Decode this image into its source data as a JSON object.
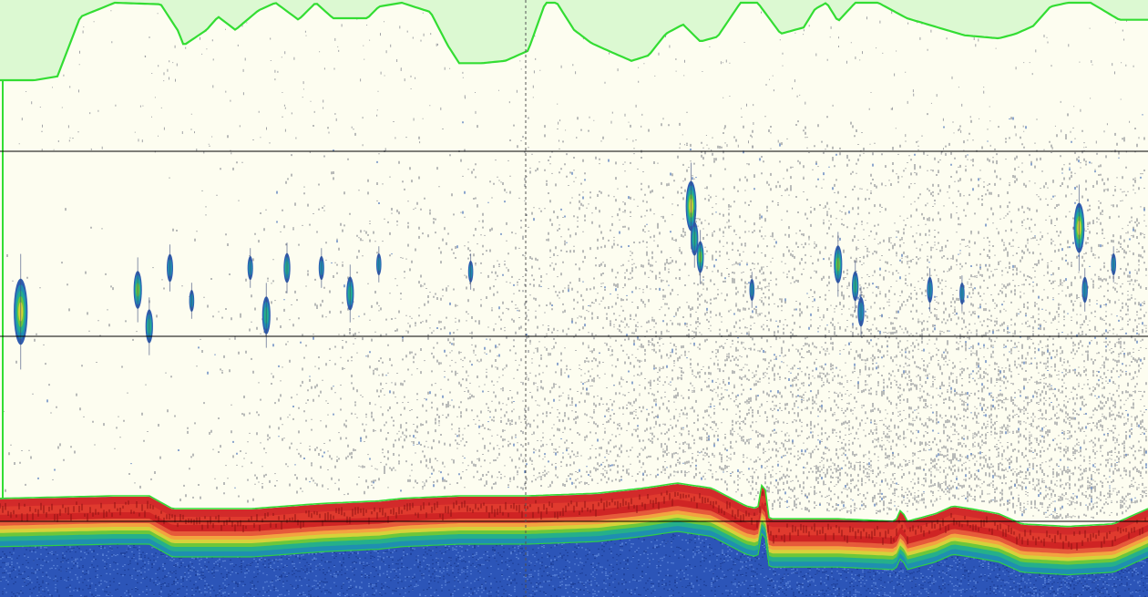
{
  "chart_data": {
    "type": "heatmap",
    "title": "",
    "xlabel": "",
    "ylabel": "",
    "axis_ticks_printed": false,
    "background_color": "#fdfdf0",
    "surface_band_fill": "#dcf9d2",
    "surface_band_line": "#33dd33",
    "bottom_line_color": "#33dd33",
    "depth_grid_color": "#000000",
    "time_marker_color": "#555555",
    "noise_color": "#555a6a",
    "weak_echo_color": "#2f5db0",
    "color_scale": [
      "#2f5db0",
      "#1f8fb0",
      "#25b08a",
      "#6cc73a",
      "#d6d23a",
      "#f3a340",
      "#e65a3a",
      "#d22a2a",
      "#8e1414"
    ],
    "depth_grid_lines": 3,
    "time_markers": 1,
    "surface_band_profile": [
      [
        0.0,
        1.0
      ],
      [
        0.03,
        1.0
      ],
      [
        0.05,
        0.95
      ],
      [
        0.07,
        0.18
      ],
      [
        0.1,
        0.0
      ],
      [
        0.14,
        0.02
      ],
      [
        0.155,
        0.36
      ],
      [
        0.16,
        0.55
      ],
      [
        0.18,
        0.35
      ],
      [
        0.19,
        0.18
      ],
      [
        0.205,
        0.35
      ],
      [
        0.225,
        0.1
      ],
      [
        0.24,
        0.0
      ],
      [
        0.26,
        0.22
      ],
      [
        0.275,
        0.0
      ],
      [
        0.29,
        0.2
      ],
      [
        0.32,
        0.2
      ],
      [
        0.33,
        0.05
      ],
      [
        0.35,
        0.0
      ],
      [
        0.375,
        0.12
      ],
      [
        0.39,
        0.55
      ],
      [
        0.4,
        0.78
      ],
      [
        0.42,
        0.78
      ],
      [
        0.44,
        0.75
      ],
      [
        0.46,
        0.62
      ],
      [
        0.475,
        0.0
      ],
      [
        0.485,
        0.0
      ],
      [
        0.5,
        0.35
      ],
      [
        0.515,
        0.52
      ],
      [
        0.53,
        0.62
      ],
      [
        0.55,
        0.75
      ],
      [
        0.565,
        0.68
      ],
      [
        0.58,
        0.4
      ],
      [
        0.595,
        0.28
      ],
      [
        0.61,
        0.5
      ],
      [
        0.625,
        0.44
      ],
      [
        0.645,
        0.0
      ],
      [
        0.66,
        0.0
      ],
      [
        0.68,
        0.4
      ],
      [
        0.7,
        0.32
      ],
      [
        0.71,
        0.08
      ],
      [
        0.72,
        0.0
      ],
      [
        0.73,
        0.24
      ],
      [
        0.745,
        0.0
      ],
      [
        0.765,
        0.0
      ],
      [
        0.79,
        0.2
      ],
      [
        0.84,
        0.42
      ],
      [
        0.87,
        0.46
      ],
      [
        0.885,
        0.4
      ],
      [
        0.9,
        0.3
      ],
      [
        0.915,
        0.05
      ],
      [
        0.93,
        0.0
      ],
      [
        0.95,
        0.0
      ],
      [
        0.975,
        0.22
      ],
      [
        1.0,
        0.22
      ]
    ],
    "bottom_profile": [
      [
        0.0,
        0.82
      ],
      [
        0.1,
        0.81
      ],
      [
        0.13,
        0.81
      ],
      [
        0.15,
        0.86
      ],
      [
        0.22,
        0.86
      ],
      [
        0.28,
        0.84
      ],
      [
        0.33,
        0.83
      ],
      [
        0.35,
        0.82
      ],
      [
        0.4,
        0.81
      ],
      [
        0.46,
        0.81
      ],
      [
        0.52,
        0.8
      ],
      [
        0.56,
        0.78
      ],
      [
        0.59,
        0.76
      ],
      [
        0.62,
        0.78
      ],
      [
        0.65,
        0.85
      ],
      [
        0.66,
        0.86
      ],
      [
        0.665,
        0.73
      ],
      [
        0.67,
        0.9
      ],
      [
        0.73,
        0.9
      ],
      [
        0.78,
        0.91
      ],
      [
        0.785,
        0.86
      ],
      [
        0.79,
        0.91
      ],
      [
        0.815,
        0.88
      ],
      [
        0.83,
        0.85
      ],
      [
        0.845,
        0.86
      ],
      [
        0.87,
        0.88
      ],
      [
        0.89,
        0.92
      ],
      [
        0.93,
        0.93
      ],
      [
        0.97,
        0.92
      ],
      [
        1.0,
        0.86
      ]
    ],
    "schools": [
      {
        "x": 0.018,
        "depth": 0.48,
        "size": 3.2,
        "strength": 0.85
      },
      {
        "x": 0.12,
        "depth": 0.42,
        "size": 1.8,
        "strength": 0.7
      },
      {
        "x": 0.13,
        "depth": 0.52,
        "size": 1.6,
        "strength": 0.55
      },
      {
        "x": 0.148,
        "depth": 0.36,
        "size": 1.3,
        "strength": 0.35
      },
      {
        "x": 0.167,
        "depth": 0.45,
        "size": 1.0,
        "strength": 0.3
      },
      {
        "x": 0.218,
        "depth": 0.36,
        "size": 1.1,
        "strength": 0.3
      },
      {
        "x": 0.232,
        "depth": 0.49,
        "size": 1.8,
        "strength": 0.55
      },
      {
        "x": 0.25,
        "depth": 0.36,
        "size": 1.4,
        "strength": 0.45
      },
      {
        "x": 0.28,
        "depth": 0.36,
        "size": 1.1,
        "strength": 0.35
      },
      {
        "x": 0.305,
        "depth": 0.43,
        "size": 1.6,
        "strength": 0.5
      },
      {
        "x": 0.33,
        "depth": 0.35,
        "size": 1.0,
        "strength": 0.3
      },
      {
        "x": 0.41,
        "depth": 0.37,
        "size": 1.0,
        "strength": 0.25
      },
      {
        "x": 0.602,
        "depth": 0.19,
        "size": 2.4,
        "strength": 0.75
      },
      {
        "x": 0.605,
        "depth": 0.28,
        "size": 1.6,
        "strength": 0.55
      },
      {
        "x": 0.61,
        "depth": 0.33,
        "size": 1.5,
        "strength": 0.6
      },
      {
        "x": 0.655,
        "depth": 0.42,
        "size": 1.0,
        "strength": 0.3
      },
      {
        "x": 0.73,
        "depth": 0.35,
        "size": 1.8,
        "strength": 0.6
      },
      {
        "x": 0.745,
        "depth": 0.41,
        "size": 1.4,
        "strength": 0.45
      },
      {
        "x": 0.75,
        "depth": 0.48,
        "size": 1.4,
        "strength": 0.4
      },
      {
        "x": 0.81,
        "depth": 0.42,
        "size": 1.2,
        "strength": 0.35
      },
      {
        "x": 0.838,
        "depth": 0.43,
        "size": 1.0,
        "strength": 0.3
      },
      {
        "x": 0.94,
        "depth": 0.25,
        "size": 2.4,
        "strength": 0.8
      },
      {
        "x": 0.945,
        "depth": 0.42,
        "size": 1.2,
        "strength": 0.35
      },
      {
        "x": 0.97,
        "depth": 0.35,
        "size": 1.0,
        "strength": 0.3
      }
    ]
  }
}
